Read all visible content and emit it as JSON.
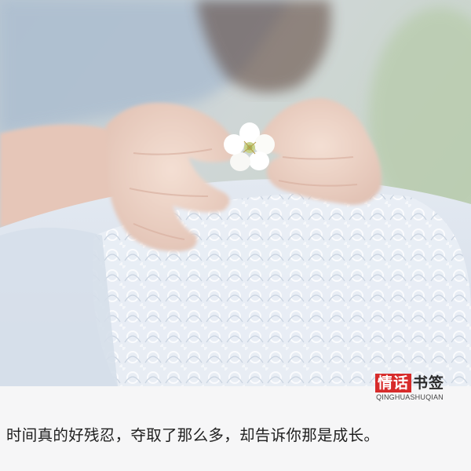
{
  "watermark": {
    "brand_red": "情话",
    "brand_dark": "书签",
    "pinyin": "QINGHUASHUQIAN"
  },
  "caption": {
    "text": "时间真的好残忍，夺取了那么多，却告诉你那是成长。"
  },
  "colors": {
    "brand_red": "#d72b2b",
    "caption_text": "#1e1e1e"
  },
  "photo": {
    "subject": "hands-holding-white-flower"
  }
}
